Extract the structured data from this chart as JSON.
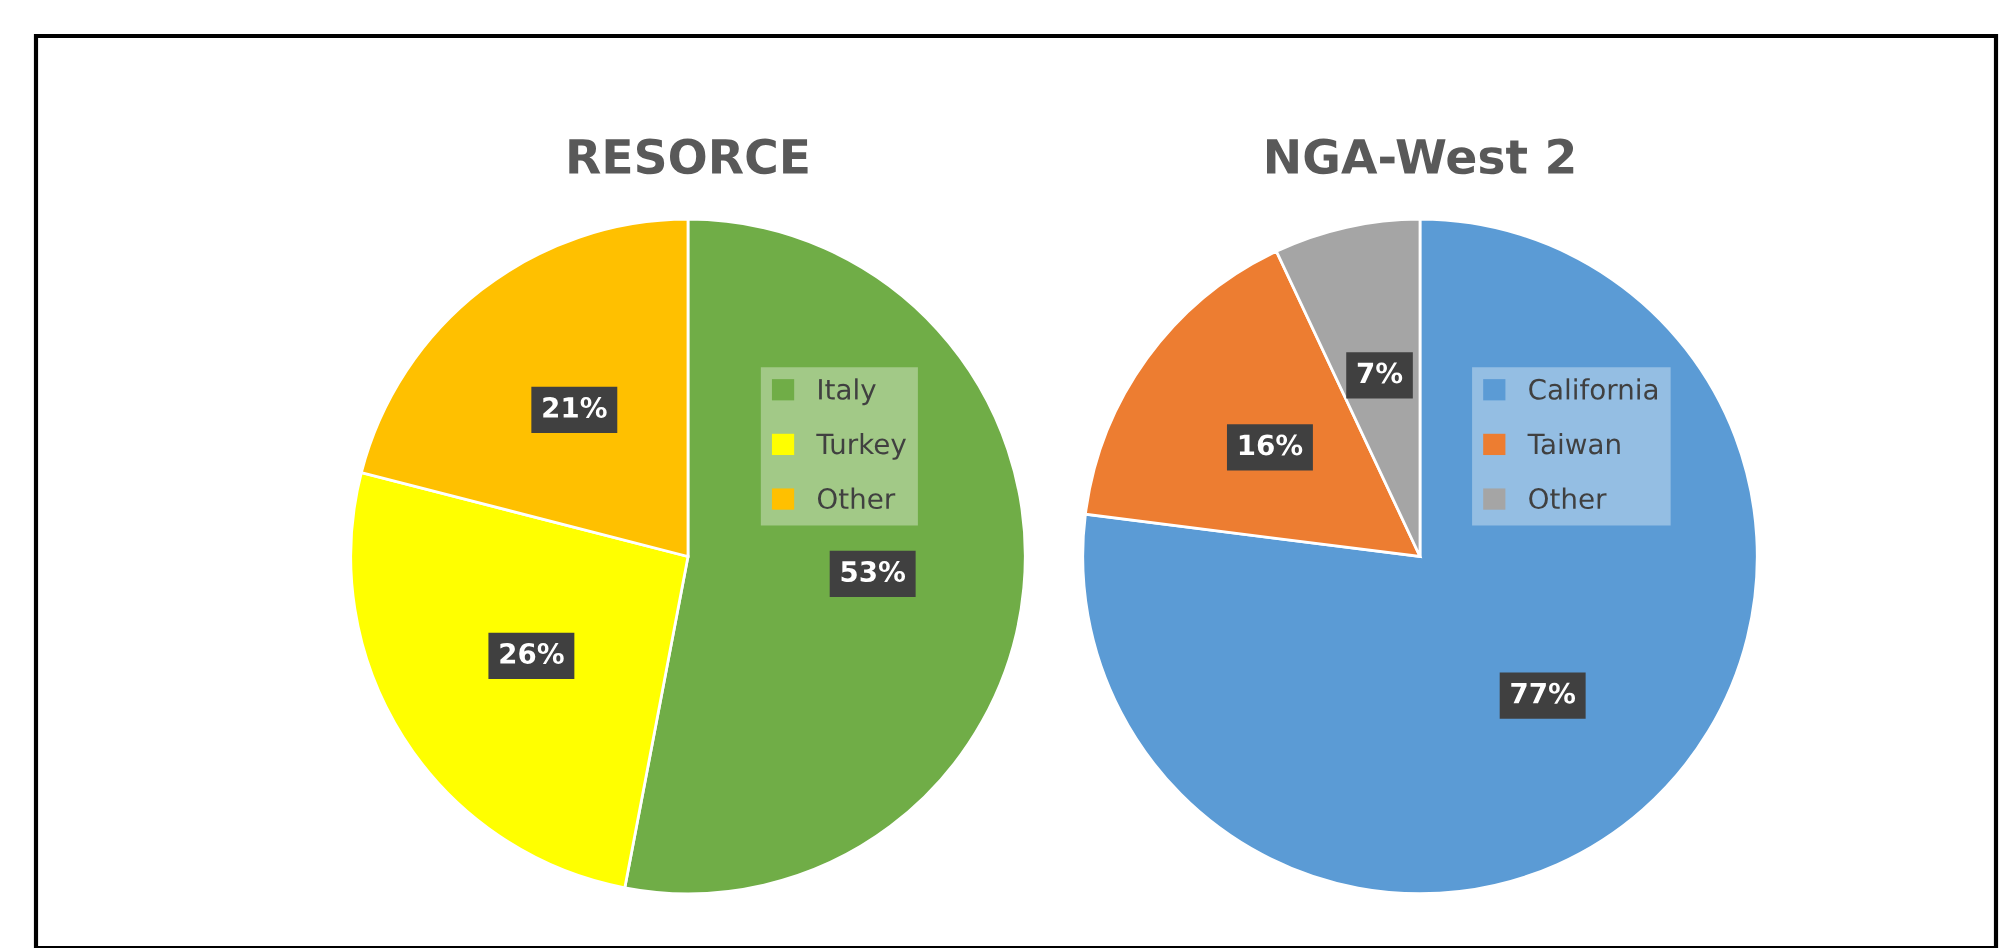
{
  "chart_data": [
    {
      "type": "pie",
      "title": "RESORCE",
      "categories": [
        "Italy",
        "Turkey",
        "Other"
      ],
      "values": [
        53,
        26,
        21
      ],
      "colors": [
        "#70ad47",
        "#ffff00",
        "#ffc000"
      ],
      "value_labels": [
        "53%",
        "26%",
        "21%"
      ],
      "legend": "right"
    },
    {
      "type": "pie",
      "title": "NGA-West 2",
      "categories": [
        "California",
        "Taiwan",
        "Other"
      ],
      "values": [
        77,
        16,
        7
      ],
      "colors": [
        "#5b9bd5",
        "#ed7d31",
        "#a5a5a5"
      ],
      "value_labels": [
        "77%",
        "16%",
        "7%"
      ],
      "legend": "right"
    }
  ]
}
